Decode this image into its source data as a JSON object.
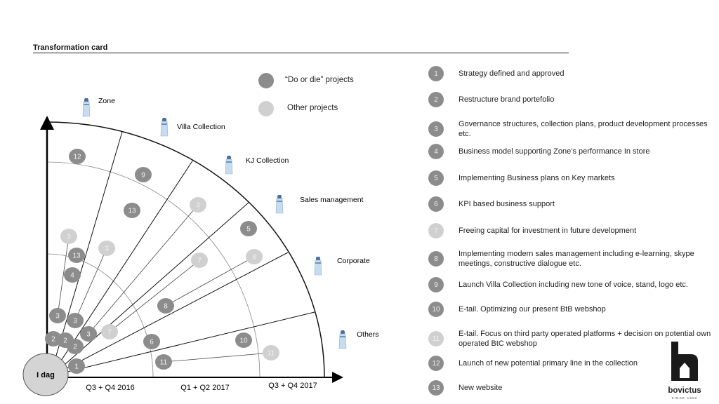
{
  "title": "Transformation card",
  "legend": {
    "do_or_die": "“Do or die” projects",
    "other": "Other projects",
    "colors": {
      "dark": "#8c8c8c",
      "light": "#d0d0d0"
    }
  },
  "lighthouses": [
    "Zone",
    "Villa Collection",
    "KJ Collection",
    "Sales management",
    "Corporate",
    "Others"
  ],
  "axis": {
    "origin": "I dag",
    "periods": [
      "Q3 + Q4 2016",
      "Q1 + Q2 2017",
      "Q3 + Q4 2017"
    ]
  },
  "bubbles": [
    "12",
    "9",
    "13",
    "3",
    "3",
    "13",
    "3",
    "4",
    "5",
    "7",
    "8",
    "8",
    "3",
    "3",
    "3",
    "7",
    "2",
    "2",
    "2",
    "6",
    "10",
    "11",
    "11",
    "1"
  ],
  "items": [
    {
      "n": "1",
      "text": "Strategy defined and approved"
    },
    {
      "n": "2",
      "text": "Restructure brand portefolio"
    },
    {
      "n": "3",
      "text": "Governance structures, collection plans, product development processes etc."
    },
    {
      "n": "4",
      "text": "Business model supporting Zone’s performance In store"
    },
    {
      "n": "5",
      "text": "Implementing Business plans on Key markets"
    },
    {
      "n": "6",
      "text": "KPI based business support"
    },
    {
      "n": "7",
      "text": "Freeing capital for investment in future development"
    },
    {
      "n": "8",
      "text": "Implementing modern sales management including e-learning, skype meetings, constructive dialogue etc."
    },
    {
      "n": "9",
      "text": "Launch Villa Collection including new tone of voice, stand, logo etc."
    },
    {
      "n": "10",
      "text": "E-tail. Optimizing our present BtB webshop"
    },
    {
      "n": "11",
      "text": "E-tail. Focus on third party operated platforms + decision on potential own operated BtC webshop"
    },
    {
      "n": "12",
      "text": "Launch of new potential primary line in the collection"
    },
    {
      "n": "13",
      "text": "New website"
    }
  ],
  "logo": {
    "name": "bovictus",
    "tagline": "SINCE 1982"
  }
}
